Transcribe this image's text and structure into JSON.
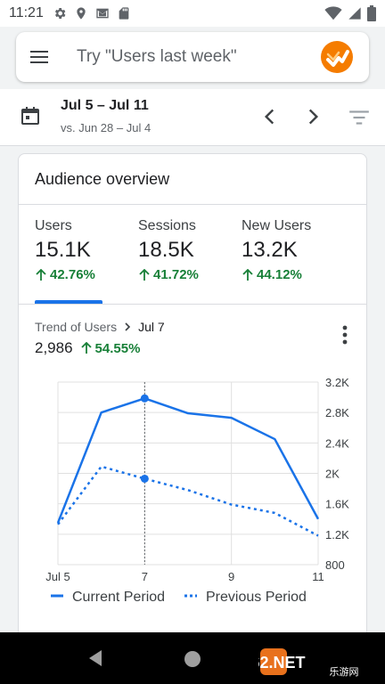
{
  "status_bar": {
    "time": "11:21",
    "icons": [
      "gear-icon",
      "location-icon",
      "gmail-icon",
      "sd-card-icon",
      "wifi-icon",
      "signal-icon",
      "battery-icon"
    ]
  },
  "search": {
    "placeholder": "Try \"Users last week\"",
    "menu_icon": "hamburger-menu-icon",
    "logo_icon": "analytics-logo-icon"
  },
  "date_bar": {
    "range": "Jul 5 – Jul 11",
    "compare": "vs. Jun 28 – Jul 4"
  },
  "overview": {
    "title": "Audience overview",
    "metrics": [
      {
        "label": "Users",
        "value": "15.1K",
        "delta": "42.76%"
      },
      {
        "label": "Sessions",
        "value": "18.5K",
        "delta": "41.72%"
      },
      {
        "label": "New Users",
        "value": "13.2K",
        "delta": "44.12%"
      }
    ],
    "selected_metric": "Users"
  },
  "trend": {
    "label": "Trend of Users",
    "date": "Jul 7",
    "value": "2,986",
    "delta": "54.55%"
  },
  "chart_data": {
    "type": "line",
    "x": [
      5,
      6,
      7,
      8,
      9,
      10,
      11
    ],
    "x_tick_labels": [
      "Jul 5",
      "7",
      "9",
      "11"
    ],
    "x_tick_positions": [
      5,
      7,
      9,
      11
    ],
    "y_tick_labels": [
      "3.2K",
      "2.8K",
      "2.4K",
      "2K",
      "1.6K",
      "1.2K",
      "800"
    ],
    "y_tick_values": [
      3200,
      2800,
      2400,
      2000,
      1600,
      1200,
      800
    ],
    "ylim": [
      800,
      3200
    ],
    "xlim": [
      5,
      11
    ],
    "y_axis_side": "right",
    "grid": true,
    "highlight_x": 7,
    "legend_position": "bottom",
    "series": [
      {
        "name": "Current Period",
        "style": "solid",
        "color": "#1a73e8",
        "values": [
          1350,
          2800,
          2986,
          2790,
          2730,
          2450,
          1400
        ]
      },
      {
        "name": "Previous Period",
        "style": "dotted",
        "color": "#1a73e8",
        "values": [
          1330,
          2090,
          1930,
          1780,
          1590,
          1480,
          1180
        ]
      }
    ]
  },
  "colors": {
    "accent": "#1a73e8",
    "positive": "#188038",
    "logo_orange": "#f57c00"
  },
  "watermark": {
    "text": "962.NET",
    "subtext": "乐游网"
  }
}
